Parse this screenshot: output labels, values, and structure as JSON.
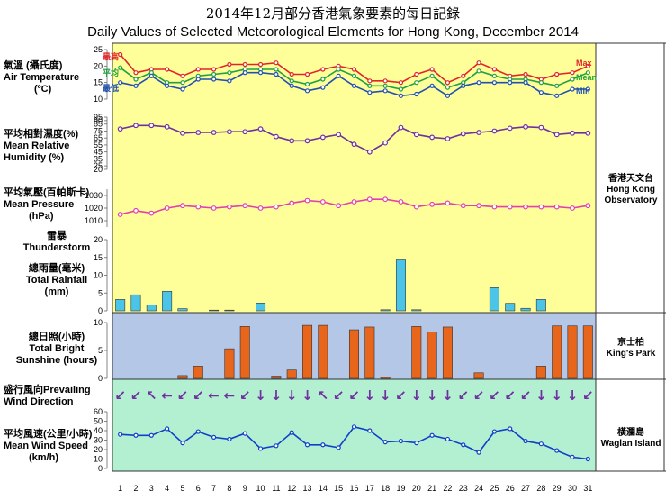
{
  "title_zh": "2014年12月部分香港氣象要素的每日記錄",
  "title_en": "Daily Values  of Selected Meteorological Elements for Hong Kong, December 2014",
  "labels": {
    "temp_zh": "氣溫 (攝氏度)",
    "temp_en": "Air Temperature",
    "temp_unit": "(ºC)",
    "rh_zh": "平均相對濕度(%)",
    "rh_en": "Mean Relative Humidity (%)",
    "pres_zh": "平均氣壓(百帕斯卡)",
    "pres_en": "Mean Pressure",
    "pres_unit": "(hPa)",
    "thunder_zh": "雷暴",
    "thunder_en": "Thunderstorm",
    "rain_zh": "總雨量(毫米)",
    "rain_en": "Total Rainfall",
    "rain_unit": "(mm)",
    "sun_zh": "總日照(小時)",
    "sun_en": "Total Bright",
    "sun_en2": "Sunshine (hours)",
    "wdir": "盛行風向Prevailing Wind Direction",
    "wspd_zh": "平均風速(公里/小時)",
    "wspd_en": "Mean Wind Speed",
    "wspd_unit": "(km/h)"
  },
  "legend": {
    "max_zh": "最高",
    "mean_zh": "平均",
    "min_zh": "最低",
    "max_en": "Max",
    "mean_en": "Mean",
    "min_en": "Min"
  },
  "stations": {
    "hko_zh": "香港天文台",
    "hko_en1": "Hong Kong",
    "hko_en2": "Observatory",
    "kp_zh": "京士柏",
    "kp_en": "King's Park",
    "wgl_zh": "橫瀾島",
    "wgl_en": "Waglan Island"
  },
  "colors": {
    "max": "#e0252a",
    "mean": "#20a040",
    "min": "#2050b0",
    "rh": "#7030a0",
    "pres": "#e040b0",
    "rain": "#4cc4e8",
    "sun": "#e8651c",
    "wind": "#1040c8",
    "arrow": "#7030a0"
  },
  "chart_data": {
    "type": "line",
    "x": [
      1,
      2,
      3,
      4,
      5,
      6,
      7,
      8,
      9,
      10,
      11,
      12,
      13,
      14,
      15,
      16,
      17,
      18,
      19,
      20,
      21,
      22,
      23,
      24,
      25,
      26,
      27,
      28,
      29,
      30,
      31
    ],
    "temperature": {
      "ylim": [
        10,
        25
      ],
      "ticks": [
        10,
        15,
        20,
        25
      ],
      "series": [
        {
          "name": "Max",
          "values": [
            23.5,
            18,
            19,
            19,
            17,
            19,
            19,
            20.5,
            20.5,
            20.5,
            21,
            17.5,
            17.5,
            19,
            20,
            19,
            15.5,
            15.5,
            15,
            17.5,
            19,
            15,
            17,
            21,
            19,
            17,
            17.5,
            16,
            17.5,
            18,
            20
          ]
        },
        {
          "name": "Mean",
          "values": [
            19.5,
            16,
            18,
            15,
            15,
            17,
            17.5,
            18,
            19,
            19,
            19,
            15.5,
            14.5,
            16,
            19,
            17,
            14,
            14,
            13,
            15,
            17,
            13.5,
            15,
            18.5,
            17,
            16,
            16,
            15,
            14,
            16,
            18
          ]
        },
        {
          "name": "Min",
          "values": [
            15,
            14,
            17,
            14,
            13,
            16,
            16,
            15.5,
            18,
            18,
            17.5,
            14,
            12.5,
            13.5,
            17,
            14,
            12,
            12.5,
            11,
            11.5,
            14,
            11,
            14,
            15,
            15,
            15,
            15,
            12,
            11,
            13,
            13
          ]
        }
      ]
    },
    "humidity": {
      "ylim": [
        20,
        95
      ],
      "ticks": [
        20,
        25,
        35,
        45,
        55,
        65,
        75,
        85,
        90,
        95
      ],
      "values": [
        78,
        83,
        83,
        81,
        72,
        73,
        73,
        74,
        74,
        78,
        67,
        61,
        61,
        66,
        70,
        56,
        45,
        58,
        80,
        70,
        66,
        64,
        71,
        73,
        75,
        79,
        81,
        80,
        70,
        72,
        72
      ]
    },
    "pressure": {
      "ylim": [
        1005,
        1035
      ],
      "ticks": [
        1010,
        1020,
        1030
      ],
      "values": [
        1015,
        1018,
        1016,
        1020,
        1022,
        1021,
        1020,
        1021,
        1022,
        1020,
        1021,
        1024,
        1026,
        1025,
        1022,
        1025,
        1027,
        1027,
        1025,
        1021,
        1023,
        1024,
        1022,
        1022,
        1021,
        1021,
        1021,
        1021,
        1021,
        1020,
        1022
      ]
    },
    "rainfall": {
      "ylim": [
        0,
        20
      ],
      "ticks": [
        0,
        5,
        10,
        15,
        20
      ],
      "values": [
        3.2,
        4.5,
        1.7,
        5.5,
        0.6,
        0,
        0.2,
        0.2,
        0,
        2.2,
        0,
        0,
        0,
        0,
        0,
        0,
        0,
        0.3,
        14.3,
        0.3,
        0,
        0,
        0,
        0,
        6.5,
        2.1,
        0.7,
        3.2,
        0,
        0,
        0
      ]
    },
    "sunshine": {
      "ylim": [
        0,
        10
      ],
      "ticks": [
        0,
        5,
        10
      ],
      "values": [
        0,
        0,
        0,
        0,
        0.5,
        2.2,
        0,
        5.3,
        9.3,
        0,
        0.4,
        1.5,
        9.5,
        9.5,
        0,
        8.7,
        9.2,
        0.2,
        0,
        9.3,
        8.3,
        9.2,
        0,
        1,
        0,
        0,
        0,
        2.2,
        9.4,
        9.4,
        9.4
      ]
    },
    "wind_direction": {
      "values": [
        "↙",
        "↙",
        "↖",
        "←",
        "↙",
        "↙",
        "←",
        "←",
        "↙",
        "↓",
        "↓",
        "↓",
        "↓",
        "↖",
        "↙",
        "↙",
        "↓",
        "↓",
        "↙",
        "↓",
        "↓",
        "↓",
        "↙",
        "↙",
        "↙",
        "↙",
        "↙",
        "↓",
        "↓",
        "↓",
        "↙"
      ]
    },
    "wind_speed": {
      "ylim": [
        0,
        60
      ],
      "ticks": [
        0,
        10,
        20,
        30,
        40,
        50,
        60
      ],
      "values": [
        36,
        35,
        35,
        42,
        27,
        39,
        33,
        31,
        37,
        21,
        24,
        38,
        25,
        25,
        22,
        44,
        40,
        28,
        29,
        27,
        35,
        31,
        25,
        17,
        39,
        42,
        29,
        26,
        19,
        12,
        10
      ]
    }
  }
}
